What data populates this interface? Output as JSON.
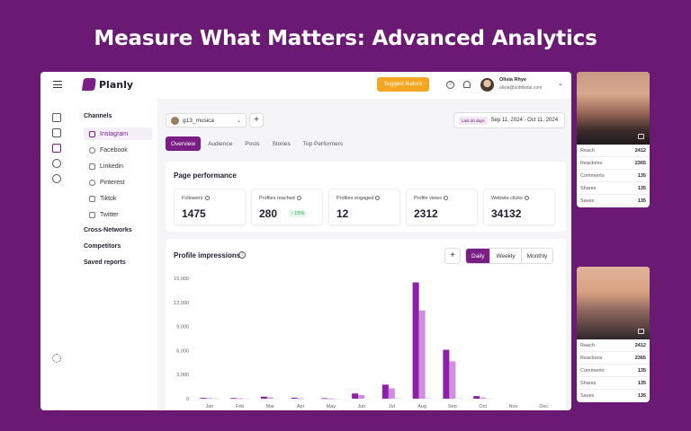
{
  "hero": {
    "title": "Measure What Matters: Advanced Analytics"
  },
  "header": {
    "logo_text": "Planly",
    "suggest_label": "Suggest feature",
    "user_name": "Olivia Rhye",
    "user_email": "olivia@untitledui.com"
  },
  "sidebar": {
    "channels_label": "Channels",
    "channels": [
      {
        "label": "Instagram",
        "icon": "instagram-icon"
      },
      {
        "label": "Facebook",
        "icon": "facebook-icon"
      },
      {
        "label": "Linkedin",
        "icon": "linkedin-icon"
      },
      {
        "label": "Pinterest",
        "icon": "pinterest-icon"
      },
      {
        "label": "Tiktok",
        "icon": "tiktok-icon"
      },
      {
        "label": "Twitter",
        "icon": "twitter-icon"
      }
    ],
    "cross_networks_label": "Cross-Networks",
    "competitors_label": "Competitors",
    "saved_reports_label": "Saved reports"
  },
  "toolbar": {
    "account": "g13_musica",
    "date_tag": "Last 30 days",
    "date_range": "Sep 11, 2024 - Oct 11, 2024"
  },
  "tabs": [
    "Overview",
    "Audience",
    "Posts",
    "Stories",
    "Top Performers"
  ],
  "performance": {
    "title": "Page performance",
    "metrics": [
      {
        "label": "Followers",
        "value": "1475",
        "delta": ""
      },
      {
        "label": "Profiles reached",
        "value": "280",
        "delta": "↑ 15%"
      },
      {
        "label": "Profiles engaged",
        "value": "12",
        "delta": ""
      },
      {
        "label": "Profile views",
        "value": "2312",
        "delta": ""
      },
      {
        "label": "Website clicks",
        "value": "34132",
        "delta": ""
      }
    ]
  },
  "impressions": {
    "title": "Profile impressions",
    "periods": [
      "Daily",
      "Weekly",
      "Monthly"
    ],
    "active_period": "Daily"
  },
  "chart_data": {
    "type": "bar",
    "categories": [
      "Jan",
      "Feb",
      "Mar",
      "Apr",
      "May",
      "Jun",
      "Jul",
      "Aug",
      "Sep",
      "Oct",
      "Nov",
      "Dec"
    ],
    "series": [
      {
        "values": [
          100,
          80,
          250,
          120,
          60,
          650,
          1750,
          14500,
          6100,
          320,
          0,
          0
        ]
      },
      {
        "values": [
          80,
          50,
          150,
          50,
          40,
          450,
          1300,
          11000,
          4650,
          150,
          0,
          0
        ]
      },
      {
        "values": [
          20,
          20,
          40,
          0,
          10,
          50,
          100,
          150,
          100,
          30,
          0,
          0
        ]
      }
    ],
    "yticks": [
      "0",
      "3,000",
      "6,000",
      "9,000",
      "12,000",
      "15,000"
    ],
    "ylim": [
      0,
      15000
    ],
    "colors": [
      "#8e1fa8",
      "#cf8ee0",
      "#ecdcf2"
    ]
  },
  "side_cards": [
    {
      "stats": [
        {
          "label": "Reach",
          "value": "2412"
        },
        {
          "label": "Reactions",
          "value": "2365"
        },
        {
          "label": "Comments",
          "value": "135"
        },
        {
          "label": "Shares",
          "value": "135"
        },
        {
          "label": "Saves",
          "value": "135"
        }
      ]
    },
    {
      "stats": [
        {
          "label": "Reach",
          "value": "2412"
        },
        {
          "label": "Reactions",
          "value": "2365"
        },
        {
          "label": "Comments",
          "value": "135"
        },
        {
          "label": "Shares",
          "value": "135"
        },
        {
          "label": "Saves",
          "value": "135"
        }
      ]
    }
  ],
  "colors": {
    "background": "#6b1a73",
    "accent": "#7a1d85",
    "cta": "#f5a623",
    "positive": "#2e9e4f"
  }
}
